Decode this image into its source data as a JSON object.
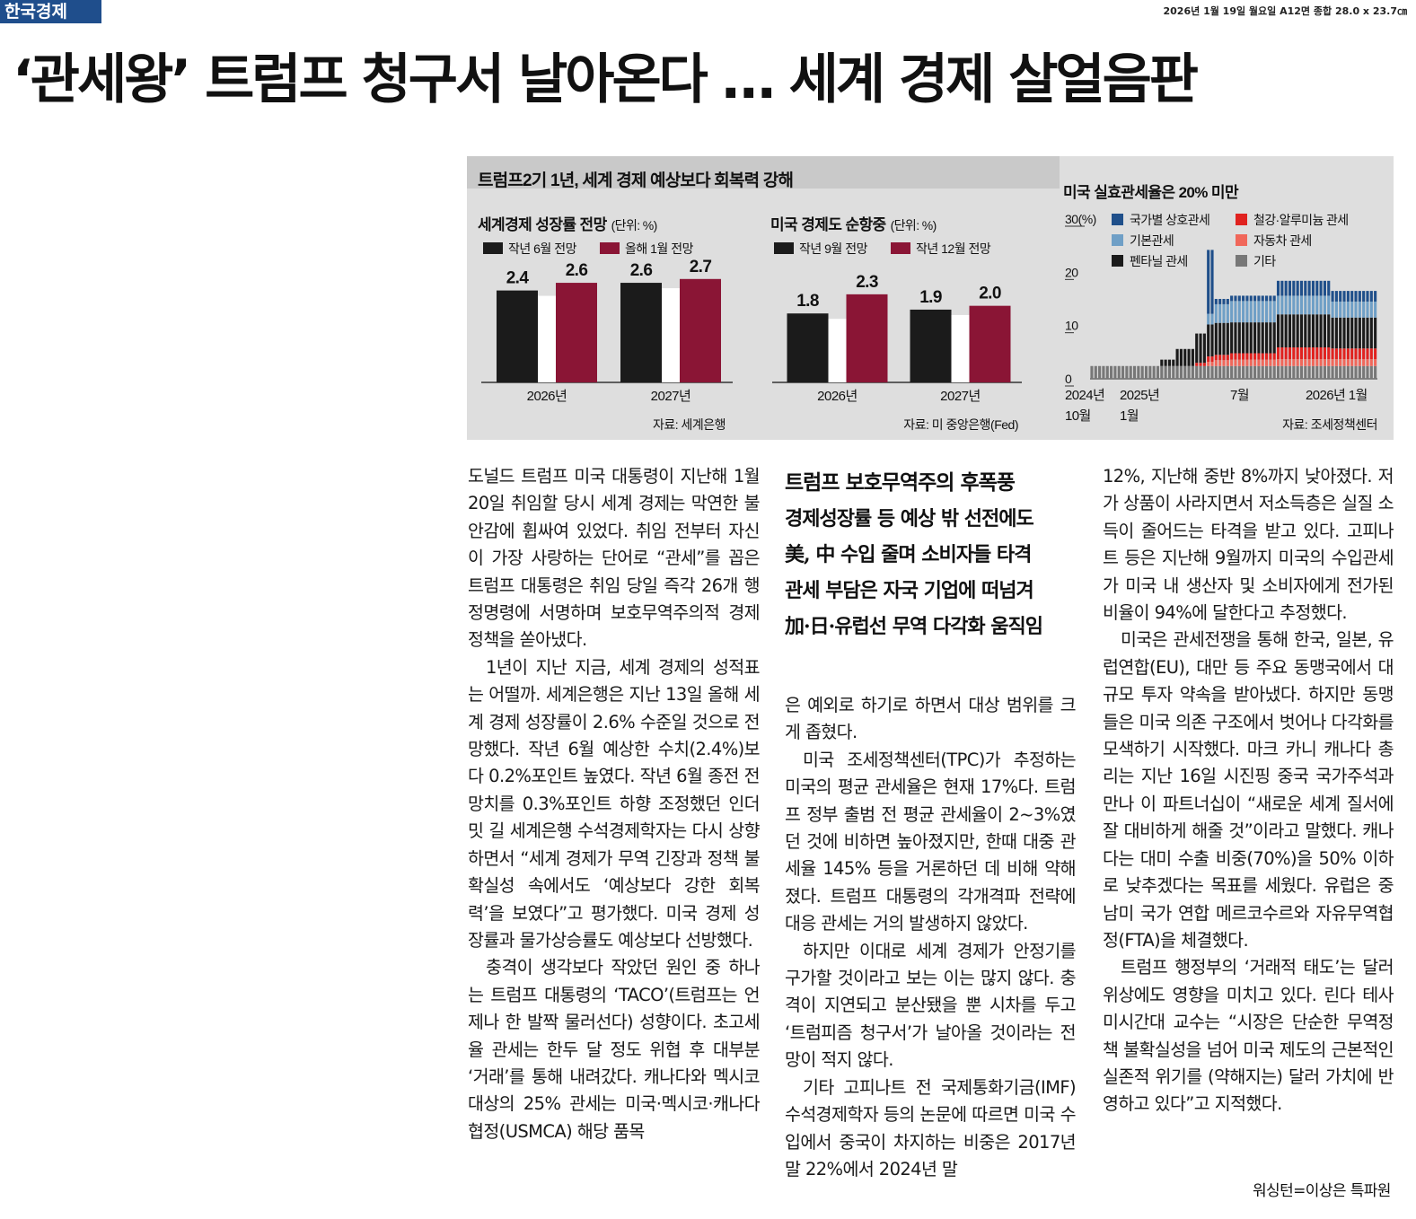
{
  "paper": {
    "masthead": "한국경제",
    "dateline": "2026년 1월 19일 월요일 A12면 종합 28.0 x 23.7㎝"
  },
  "headline": "‘관세왕’ 트럼프 청구서 날아온다 … 세계 경제 살얼음판",
  "graphic": {
    "title": "트럼프2기 1년, 세계 경제 예상보다 회복력 강해",
    "world": {
      "title": "세계경제 성장률 전망",
      "unit": "(단위: %)",
      "legend": [
        "작년 6월 전망",
        "올해 1월 전망"
      ],
      "source": "자료: 세계은행"
    },
    "us": {
      "title": "미국 경제도 순항중",
      "unit": "(단위: %)",
      "legend": [
        "작년 9월 전망",
        "작년 12월 전망"
      ],
      "source": "자료: 미 중앙은행(Fed)"
    },
    "tariff": {
      "title": "미국 실효관세율은 20% 미만",
      "yticks": [
        "30(%)",
        "20",
        "10",
        "0"
      ],
      "legend": [
        "국가별 상호관세",
        "철강·알루미늄 관세",
        "기본관세",
        "자동차 관세",
        "펜타닐 관세",
        "기타"
      ],
      "xticks": [
        [
          "2024년",
          "10월"
        ],
        [
          "2025년",
          "1월"
        ],
        [
          "7월",
          ""
        ],
        [
          "2026년 1월",
          ""
        ]
      ],
      "source": "자료: 조세정책센터"
    },
    "colors": {
      "dark": "#1b1b1b",
      "maroon": "#8a1535",
      "reciprocal": "#1f4f8a",
      "base": "#6f9fc6",
      "fentanyl": "#1b1b1b",
      "steel": "#e0221f",
      "auto": "#f0675a",
      "other": "#777777"
    }
  },
  "chart_data": [
    {
      "type": "bar",
      "title": "세계경제 성장률 전망",
      "categories": [
        "2026년",
        "2027년"
      ],
      "series": [
        {
          "name": "작년 6월 전망",
          "values": [
            2.4,
            2.6
          ]
        },
        {
          "name": "올해 1월 전망",
          "values": [
            2.6,
            2.7
          ]
        }
      ],
      "ylim": [
        0,
        3
      ]
    },
    {
      "type": "bar",
      "title": "미국 경제도 순항중",
      "categories": [
        "2026년",
        "2027년"
      ],
      "series": [
        {
          "name": "작년 9월 전망",
          "values": [
            1.8,
            1.9
          ]
        },
        {
          "name": "작년 12월 전망",
          "values": [
            2.3,
            2.0
          ]
        }
      ],
      "ylim": [
        0,
        3
      ]
    },
    {
      "type": "bar",
      "title": "미국 실효관세율은 20% 미만",
      "stacked": true,
      "ylim": [
        0,
        30
      ],
      "x_range": [
        "2024-10",
        "2026-01"
      ],
      "series_order": [
        "펜타닐 관세",
        "기본관세",
        "국가별 상호관세",
        "철강·알루미늄 관세",
        "자동차 관세",
        "기타"
      ],
      "periods": [
        {
          "label": "2024-10~2025-01",
          "n": 18,
          "values": [
            0,
            0,
            0,
            0,
            0,
            2.4
          ]
        },
        {
          "label": "2025-02",
          "n": 4,
          "values": [
            1.2,
            0,
            0,
            0,
            0,
            2.4
          ]
        },
        {
          "label": "2025-03",
          "n": 5,
          "values": [
            3.2,
            0,
            0,
            0,
            0,
            2.4
          ]
        },
        {
          "label": "2025-03b",
          "n": 3,
          "values": [
            5.5,
            0,
            0,
            0.6,
            0,
            2.4
          ]
        },
        {
          "label": "2025-04a",
          "n": 2,
          "values": [
            6.0,
            2.0,
            12.0,
            1.0,
            0.8,
            2.4
          ]
        },
        {
          "label": "2025-04b",
          "n": 4,
          "values": [
            6.0,
            3.5,
            1.0,
            1.0,
            1.1,
            2.4
          ]
        },
        {
          "label": "2025-05~07",
          "n": 12,
          "values": [
            5.8,
            4.0,
            1.0,
            1.2,
            1.2,
            2.4
          ]
        },
        {
          "label": "2025-08~11",
          "n": 14,
          "values": [
            6.2,
            3.5,
            2.8,
            2.2,
            1.3,
            2.4
          ]
        },
        {
          "label": "2025-12~2026-01",
          "n": 12,
          "values": [
            5.8,
            3.0,
            2.0,
            2.0,
            1.3,
            2.4
          ]
        }
      ]
    }
  ],
  "subheads": [
    "트럼프 보호무역주의 후폭풍",
    "경제성장률 등 예상 밖 선전에도",
    "美, 中 수입 줄며 소비자들 타격",
    "관세 부담은 자국 기업에 떠넘겨",
    "加·日·유럽선 무역 다각화 움직임"
  ],
  "article": {
    "col1": [
      "도널드 트럼프 미국 대통령이 지난해 1월 20일 취임할 당시 세계 경제는 막연한 불안감에 휩싸여 있었다. 취임 전부터 자신이 가장 사랑하는 단어로 “관세”를 꼽은 트럼프 대통령은 취임 당일 즉각 26개 행정명령에 서명하며 보호무역주의적 경제정책을 쏟아냈다.",
      "1년이 지난 지금, 세계 경제의 성적표는 어떨까. 세계은행은 지난 13일 올해 세계 경제 성장률이 2.6% 수준일 것으로 전망했다. 작년 6월 예상한 수치(2.4%)보다 0.2%포인트 높였다. 작년 6월 종전 전망치를 0.3%포인트 하향 조정했던 인더밋 길 세계은행 수석경제학자는 다시 상향하면서 “세계 경제가 무역 긴장과 정책 불확실성 속에서도 ‘예상보다 강한 회복력’을 보였다”고 평가했다. 미국 경제 성장률과 물가상승률도 예상보다 선방했다.",
      "충격이 생각보다 작았던 원인 중 하나는 트럼프 대통령의 ‘TACO’(트럼프는 언제나 한 발짝 물러선다) 성향이다. 초고세율 관세는 한두 달 정도 위협 후 대부분 ‘거래’를 통해 내려갔다. 캐나다와 멕시코 대상의 25% 관세는 미국·멕시코·캐나다 협정(USMCA) 해당 품목"
    ],
    "col2": [
      "은 예외로 하기로 하면서 대상 범위를 크게 좁혔다.",
      "미국 조세정책센터(TPC)가 추정하는 미국의 평균 관세율은 현재 17%다. 트럼프 정부 출범 전 평균 관세율이 2~3%였던 것에 비하면 높아졌지만, 한때 대중 관세율 145% 등을 거론하던 데 비해 약해졌다. 트럼프 대통령의 각개격파 전략에 대응 관세는 거의 발생하지 않았다.",
      "하지만 이대로 세계 경제가 안정기를 구가할 것이라고 보는 이는 많지 않다. 충격이 지연되고 분산됐을 뿐 시차를 두고 ‘트럼피즘 청구서’가 날아올 것이라는 전망이 적지 않다.",
      "기타 고피나트 전 국제통화기금(IMF) 수석경제학자 등의 논문에 따르면 미국 수입에서 중국이 차지하는 비중은 2017년 말 22%에서 2024년 말"
    ],
    "col3": [
      "12%, 지난해 중반 8%까지 낮아졌다. 저가 상품이 사라지면서 저소득층은 실질 소득이 줄어드는 타격을 받고 있다. 고피나트 등은 지난해 9월까지 미국의 수입관세가 미국 내 생산자 및 소비자에게 전가된 비율이 94%에 달한다고 추정했다.",
      "미국은 관세전쟁을 통해 한국, 일본, 유럽연합(EU), 대만 등 주요 동맹국에서 대규모 투자 약속을 받아냈다. 하지만 동맹들은 미국 의존 구조에서 벗어나 다각화를 모색하기 시작했다. 마크 카니 캐나다 총리는 지난 16일 시진핑 중국 국가주석과 만나 이 파트너십이 “새로운 세계 질서에 잘 대비하게 해줄 것”이라고 말했다. 캐나다는 대미 수출 비중(70%)을 50% 이하로 낮추겠다는 목표를 세웠다. 유럽은 중남미 국가 연합 메르코수르와 자유무역협정(FTA)을 체결했다.",
      "트럼프 행정부의 ‘거래적 태도’는 달러 위상에도 영향을 미치고 있다. 린다 테사 미시간대 교수는 “시장은 단순한 무역정책 불확실성을 넘어 미국 제도의 근본적인 실존적 위기를 (약해지는) 달러 가치에 반영하고 있다”고 지적했다."
    ],
    "byline": "워싱턴=이상은 특파원"
  }
}
